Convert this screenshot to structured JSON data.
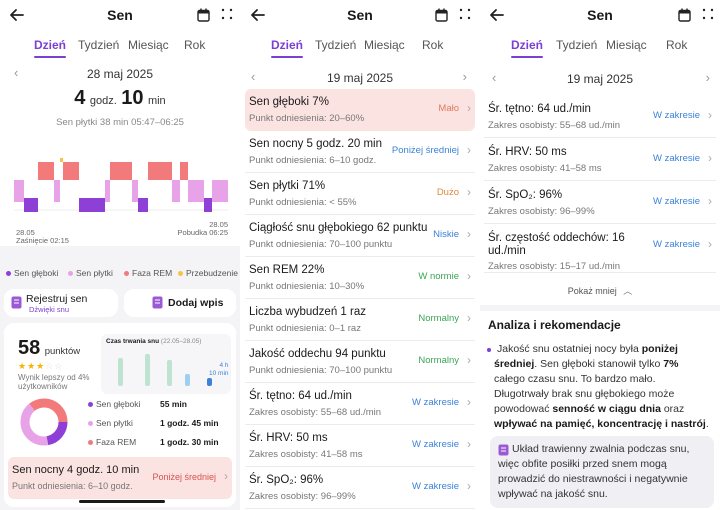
{
  "colors": {
    "accent": "#7b3fd2",
    "deep": "#8e3fd6",
    "light": "#e8a3e8",
    "rem": "#f27a7a",
    "awake": "#f5c542",
    "blue": "#3b82d8",
    "low": "#e07a5f",
    "green": "#3aa655"
  },
  "panel1": {
    "title": "Sen",
    "tabs": [
      "Dzień",
      "Tydzień",
      "Miesiąc",
      "Rok"
    ],
    "date": "28 maj 2025",
    "duration_h": "4",
    "duration_h_unit": "godz.",
    "duration_m": "10",
    "duration_m_unit": "min",
    "light_sleep_line": "Sen płytki 38 min 05:47–06:25",
    "chart_left_date": "28.05",
    "chart_left_label": "Zaśnięcie 02:15",
    "chart_right_date": "28.05",
    "chart_right_label": "Pobudka 06:25",
    "legend": [
      "Sen głęboki",
      "Sen płytki",
      "Faza REM",
      "Przebudzenie"
    ],
    "register_btn": "Rejestruj sen",
    "register_sub": "Dźwięki snu",
    "add_btn": "Dodaj wpis",
    "score": "58",
    "score_unit": "punktów",
    "score_note": "Wynik lepszy od 4% użytkowników",
    "mini_chart_title": "Czas trwania snu",
    "mini_chart_range": "(22.05–28.05)",
    "mini_chart_4h": "4 h",
    "mini_chart_10": "10 min",
    "breakdown": [
      {
        "name": "Sen głęboki",
        "value": "55 min"
      },
      {
        "name": "Sen płytki",
        "value": "1 godz. 45 min"
      },
      {
        "name": "Faza REM",
        "value": "1 godz. 30 min"
      }
    ],
    "night_title": "Sen nocny 4 godz. 10 min",
    "night_sub": "Punkt odniesienia: 6–10 godz.",
    "night_status": "Poniżej średniej"
  },
  "panel2": {
    "title": "Sen",
    "tabs": [
      "Dzień",
      "Tydzień",
      "Miesiąc",
      "Rok"
    ],
    "date": "19 maj 2025",
    "rows": [
      {
        "t": "Sen głęboki 7%",
        "s": "Punkt odniesienia: 20–60%",
        "st": "Mało"
      },
      {
        "t": "Sen nocny 5 godz. 20 min",
        "s": "Punkt odniesienia: 6–10 godz.",
        "st": "Poniżej średniej"
      },
      {
        "t": "Sen płytki 71%",
        "s": "Punkt odniesienia: < 55%",
        "st": "Dużo"
      },
      {
        "t": "Ciągłość snu głębokiego 62 punktu",
        "s": "Punkt odniesienia: 70–100 punktu",
        "st": "Niskie"
      },
      {
        "t": "Sen REM 22%",
        "s": "Punkt odniesienia: 10–30%",
        "st": "W normie"
      },
      {
        "t": "Liczba wybudzeń 1 raz",
        "s": "Punkt odniesienia: 0–1 raz",
        "st": "Normalny"
      },
      {
        "t": "Jakość oddechu 94 punktu",
        "s": "Punkt odniesienia: 70–100 punktu",
        "st": "Normalny"
      },
      {
        "t": "Śr. tętno: 64 ud./min",
        "s": "Zakres osobisty: 55–68 ud./min",
        "st": "W zakresie"
      },
      {
        "t": "Śr. HRV: 50 ms",
        "s": "Zakres osobisty: 41–58 ms",
        "st": "W zakresie"
      },
      {
        "t": "Śr. SpO₂: 96%",
        "s": "Zakres osobisty: 96–99%",
        "st": "W zakresie"
      }
    ]
  },
  "panel3": {
    "title": "Sen",
    "tabs": [
      "Dzień",
      "Tydzień",
      "Miesiąc",
      "Rok"
    ],
    "date": "19 maj 2025",
    "rows": [
      {
        "t": "Śr. tętno: 64 ud./min",
        "s": "Zakres osobisty: 55–68 ud./min",
        "st": "W zakresie"
      },
      {
        "t": "Śr. HRV: 50 ms",
        "s": "Zakres osobisty: 41–58 ms",
        "st": "W zakresie"
      },
      {
        "t": "Śr. SpO₂: 96%",
        "s": "Zakres osobisty: 96–99%",
        "st": "W zakresie"
      },
      {
        "t": "Śr. częstość oddechów: 16",
        "t2": "ud./min",
        "s": "Zakres osobisty: 15–17 ud./min",
        "st": "W zakresie"
      }
    ],
    "show_less": "Pokaż mniej",
    "analysis_title": "Analiza i rekomendacje",
    "p1_a": "Jakość snu ostatniej nocy była ",
    "p1_b": "poniżej średniej",
    "p1_c": ". Sen głęboki stanowił tylko ",
    "p1_d": "7%",
    "p1_e": " całego czasu snu. To bardzo mało. Długotrwały brak snu głębokiego może powodować ",
    "p1_f": "senność w ciągu dnia",
    "p1_g": " oraz ",
    "p1_h": "wpływać na pamięć, koncentrację i nastrój",
    "p1_i": ".",
    "p2": "Układ trawienny zwalnia podczas snu, więc obfite posiłki przed snem mogą prowadzić do niestrawności i negatywnie wpływać na jakość snu."
  }
}
